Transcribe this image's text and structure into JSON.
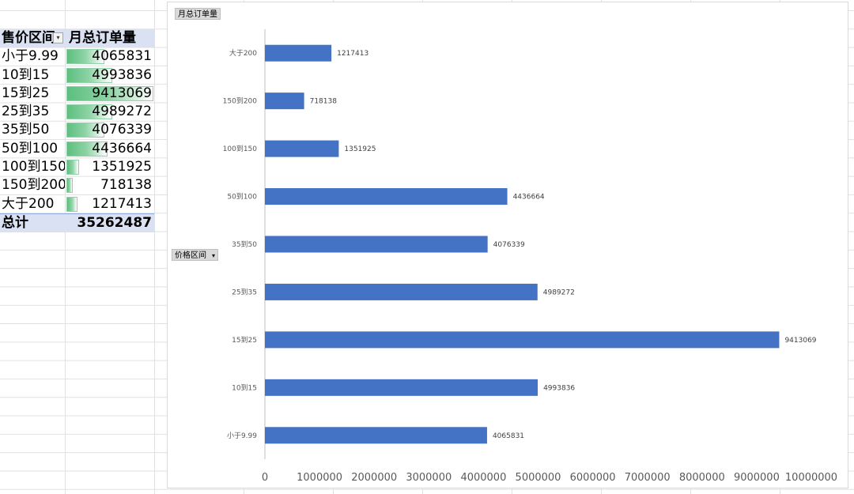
{
  "pivot": {
    "header_col1": "售价区间",
    "header_col2": "月总订单量",
    "rows": [
      {
        "label": "小于9.99",
        "value": "4065831"
      },
      {
        "label": "10到15",
        "value": "4993836"
      },
      {
        "label": "15到25",
        "value": "9413069"
      },
      {
        "label": "25到35",
        "value": "4989272"
      },
      {
        "label": "35到50",
        "value": "4076339"
      },
      {
        "label": "50到100",
        "value": "4436664"
      },
      {
        "label": "100到150",
        "value": "1351925"
      },
      {
        "label": "150到200",
        "value": "718138"
      },
      {
        "label": "大于200",
        "value": "1217413"
      }
    ],
    "total_label": "总计",
    "total_value": "35262487",
    "databar_max": 9413069
  },
  "chart_fields": {
    "value_field": "月总订单量",
    "axis_field": "价格区间"
  },
  "chart_data": {
    "type": "bar",
    "orientation": "horizontal",
    "title": "",
    "xlabel": "",
    "ylabel": "",
    "categories": [
      "小于9.99",
      "10到15",
      "15到25",
      "25到35",
      "35到50",
      "50到100",
      "100到150",
      "150到200",
      "大于200"
    ],
    "values": [
      4065831,
      4993836,
      9413069,
      4989272,
      4076339,
      4436664,
      1351925,
      718138,
      1217413
    ],
    "data_labels": [
      "4065831",
      "4993836",
      "9413069",
      "4989272",
      "4076339",
      "4436664",
      "1351925",
      "718138",
      "1217413"
    ],
    "x_ticks": [
      "0",
      "1000000",
      "2000000",
      "3000000",
      "4000000",
      "5000000",
      "6000000",
      "7000000",
      "8000000",
      "9000000",
      "10000000"
    ],
    "xlim": [
      0,
      10000000
    ],
    "grid": false,
    "bar_color": "#4472c4"
  }
}
